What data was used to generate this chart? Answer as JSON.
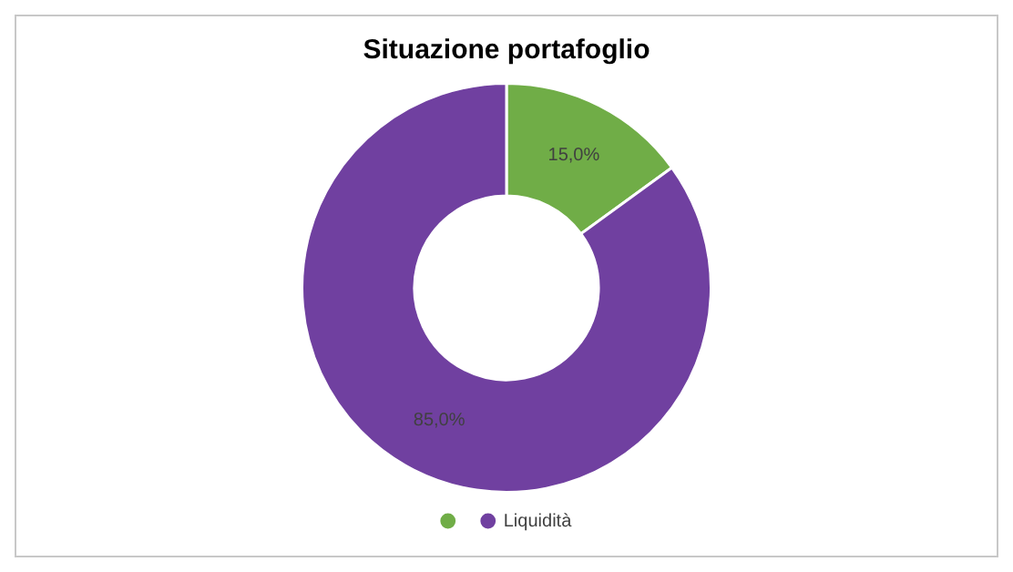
{
  "chart_data": {
    "type": "donut",
    "title": "Situazione portafoglio",
    "categories": [
      null,
      "Liquidità"
    ],
    "values": [
      15,
      85
    ],
    "colors": [
      "#70ad47",
      "#7040a0"
    ],
    "value_labels": [
      "15,0%",
      "85,0%"
    ],
    "legend": "bottom"
  }
}
